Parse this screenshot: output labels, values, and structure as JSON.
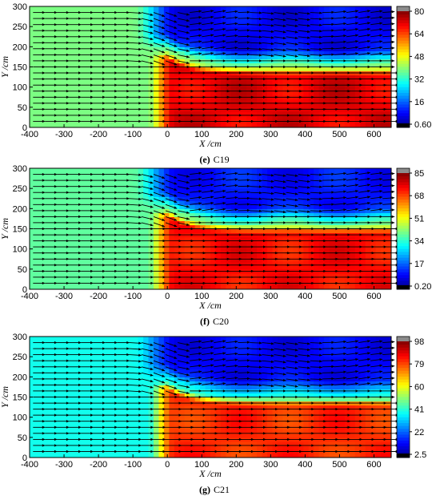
{
  "chart_data": [
    {
      "type": "heatmap",
      "caption_letter": "(e)",
      "caption_name": "C19",
      "xlabel": "X /cm",
      "ylabel": "Y /cm",
      "xlim": [
        -400,
        650
      ],
      "ylim": [
        0,
        300
      ],
      "xticks": [
        "-400",
        "-300",
        "-200",
        "-100",
        "0",
        "100",
        "200",
        "300",
        "400",
        "500",
        "600"
      ],
      "yticks": [
        "0",
        "50",
        "100",
        "150",
        "200",
        "250",
        "300"
      ],
      "colorbar": {
        "min": 0.6,
        "max": 80,
        "ticks": [
          "0.60",
          "16",
          "32",
          "48",
          "64",
          "80"
        ]
      },
      "jet_core_value": 72,
      "jet_upper_y": 150,
      "low_zone_value": 10
    },
    {
      "type": "heatmap",
      "caption_letter": "(f)",
      "caption_name": "C20",
      "xlabel": "X /cm",
      "ylabel": "Y /cm",
      "xlim": [
        -400,
        650
      ],
      "ylim": [
        0,
        300
      ],
      "xticks": [
        "-400",
        "-300",
        "-200",
        "-100",
        "0",
        "100",
        "200",
        "300",
        "400",
        "500",
        "600"
      ],
      "yticks": [
        "0",
        "50",
        "100",
        "150",
        "200",
        "250",
        "300"
      ],
      "colorbar": {
        "min": 0.2,
        "max": 85,
        "ticks": [
          "0.20",
          "17",
          "34",
          "51",
          "68",
          "85"
        ]
      },
      "jet_core_value": 74,
      "jet_upper_y": 160,
      "low_zone_value": 12
    },
    {
      "type": "heatmap",
      "caption_letter": "(g)",
      "caption_name": "C21",
      "xlabel": "X /cm",
      "ylabel": "Y /cm",
      "xlim": [
        -400,
        650
      ],
      "ylim": [
        0,
        300
      ],
      "xticks": [
        "-400",
        "-300",
        "-200",
        "-100",
        "0",
        "100",
        "200",
        "300",
        "400",
        "500",
        "600"
      ],
      "yticks": [
        "0",
        "50",
        "100",
        "150",
        "200",
        "250",
        "300"
      ],
      "colorbar": {
        "min": 2.5,
        "max": 98,
        "ticks": [
          "2.5",
          "22",
          "41",
          "60",
          "79",
          "98"
        ]
      },
      "jet_core_value": 82,
      "jet_upper_y": 150,
      "low_zone_value": 14
    }
  ]
}
